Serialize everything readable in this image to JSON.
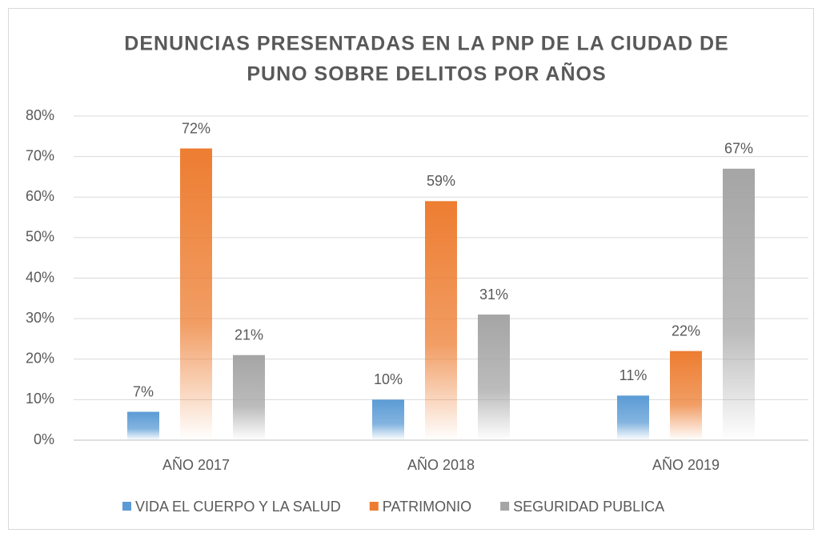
{
  "chart_data": {
    "type": "bar",
    "title": [
      "DENUNCIAS PRESENTADAS EN LA PNP DE LA CIUDAD DE",
      "PUNO SOBRE DELITOS POR AÑOS"
    ],
    "categories": [
      "AÑO 2017",
      "AÑO 2018",
      "AÑO 2019"
    ],
    "series": [
      {
        "name": "VIDA EL CUERPO Y LA SALUD",
        "color": "#5b9bd5",
        "values": [
          7,
          10,
          11
        ],
        "value_labels": [
          "7%",
          "10%",
          "11%"
        ]
      },
      {
        "name": "PATRIMONIO",
        "color": "#ed7d31",
        "values": [
          72,
          59,
          22
        ],
        "value_labels": [
          "72%",
          "59%",
          "22%"
        ]
      },
      {
        "name": "SEGURIDAD PUBLICA",
        "color": "#a5a5a5",
        "values": [
          21,
          31,
          67
        ],
        "value_labels": [
          "21%",
          "31%",
          "67%"
        ]
      }
    ],
    "ylim": [
      0,
      80
    ],
    "yticks": [
      {
        "value": 0,
        "label": "0%"
      },
      {
        "value": 10,
        "label": "10%"
      },
      {
        "value": 20,
        "label": "20%"
      },
      {
        "value": 30,
        "label": "30%"
      },
      {
        "value": 40,
        "label": "40%"
      },
      {
        "value": 50,
        "label": "50%"
      },
      {
        "value": 60,
        "label": "60%"
      },
      {
        "value": 70,
        "label": "70%"
      },
      {
        "value": 80,
        "label": "80%"
      }
    ],
    "grid": true,
    "legend": "bottom"
  }
}
